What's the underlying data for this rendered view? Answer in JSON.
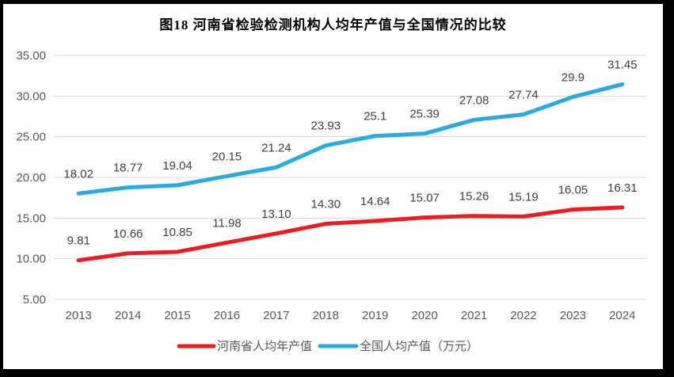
{
  "frame": {
    "border_color": "#000000",
    "background": "#ffffff"
  },
  "chart_data": {
    "type": "line",
    "title": "图18  河南省检验检测机构人均年产值与全国情况的比较",
    "categories": [
      "2013",
      "2014",
      "2015",
      "2016",
      "2017",
      "2018",
      "2019",
      "2020",
      "2021",
      "2022",
      "2023",
      "2024"
    ],
    "series": [
      {
        "name": "河南省人均年产值",
        "color": "#ec1c23",
        "values": [
          9.81,
          10.66,
          10.85,
          11.98,
          13.1,
          14.3,
          14.64,
          15.07,
          15.26,
          15.19,
          16.05,
          16.31
        ],
        "labels": [
          "9.81",
          "10.66",
          "10.85",
          "11.98",
          "13.10",
          "14.30",
          "14.64",
          "15.07",
          "15.26",
          "15.19",
          "16.05",
          "16.31"
        ]
      },
      {
        "name": "全国人均产值（万元）",
        "color": "#29abe2",
        "values": [
          18.02,
          18.77,
          19.04,
          20.15,
          21.24,
          23.93,
          25.1,
          25.39,
          27.08,
          27.74,
          29.9,
          31.45
        ],
        "labels": [
          "18.02",
          "18.77",
          "19.04",
          "20.15",
          "21.24",
          "23.93",
          "25.1",
          "25.39",
          "27.08",
          "27.74",
          "29.9",
          "31.45"
        ]
      }
    ],
    "y_axis": {
      "min": 5,
      "max": 35,
      "step": 5,
      "tick_labels": [
        "5.00",
        "10.00",
        "15.00",
        "20.00",
        "25.00",
        "30.00",
        "35.00"
      ]
    },
    "grid": true,
    "legend_position": "bottom",
    "colors": {
      "grid": "#d9d9d9",
      "axis_text": "#595959",
      "label_text": "#3f3f3f"
    }
  }
}
